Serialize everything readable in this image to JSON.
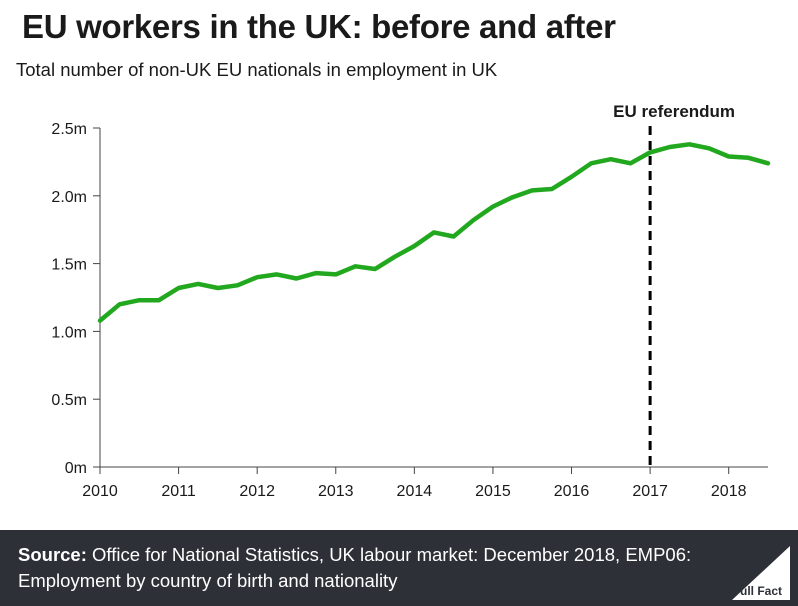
{
  "header": {
    "title": "EU workers in the UK: before and after",
    "subtitle": "Total number of non-UK EU nationals in employment in UK"
  },
  "colors": {
    "line": "#22a81e",
    "text": "#1a1a1a",
    "axis": "#444444",
    "footer_bg": "#2d3037"
  },
  "chart_data": {
    "type": "line",
    "title": "",
    "xlabel": "",
    "ylabel": "",
    "x_tick_labels": [
      "2010",
      "2011",
      "2012",
      "2013",
      "2014",
      "2015",
      "2016",
      "2017",
      "2018"
    ],
    "y_tick_labels": [
      "0m",
      "0.5m",
      "1.0m",
      "1.5m",
      "2.0m",
      "2.5m"
    ],
    "y_ticks": [
      0,
      0.5,
      1.0,
      1.5,
      2.0,
      2.5
    ],
    "xlim": [
      2010.0,
      2018.5
    ],
    "ylim": [
      0,
      2.5
    ],
    "grid": false,
    "series": [
      {
        "unit": "millions",
        "x": [
          2010.0,
          2010.25,
          2010.5,
          2010.75,
          2011.0,
          2011.25,
          2011.5,
          2011.75,
          2012.0,
          2012.25,
          2012.5,
          2012.75,
          2013.0,
          2013.25,
          2013.5,
          2013.75,
          2014.0,
          2014.25,
          2014.5,
          2014.75,
          2015.0,
          2015.25,
          2015.5,
          2015.75,
          2016.0,
          2016.25,
          2016.5,
          2016.75,
          2017.0,
          2017.25,
          2017.5,
          2017.75,
          2018.0,
          2018.25,
          2018.5
        ],
        "values": [
          1.08,
          1.2,
          1.23,
          1.23,
          1.32,
          1.35,
          1.32,
          1.34,
          1.4,
          1.42,
          1.39,
          1.43,
          1.42,
          1.48,
          1.46,
          1.55,
          1.63,
          1.73,
          1.7,
          1.82,
          1.92,
          1.99,
          2.04,
          2.05,
          2.14,
          2.24,
          2.27,
          2.24,
          2.32,
          2.36,
          2.38,
          2.35,
          2.29,
          2.28,
          2.24
        ]
      }
    ],
    "annotations": [
      {
        "label": "EU referendum",
        "x": 2017.0,
        "style": "dashed-vertical"
      }
    ]
  },
  "footer": {
    "source_label": "Source:",
    "source_text": "Office for National Statistics, UK labour market: December 2018, EMP06: Employment by country of birth and nationality",
    "logo_text": "Full Fact"
  }
}
